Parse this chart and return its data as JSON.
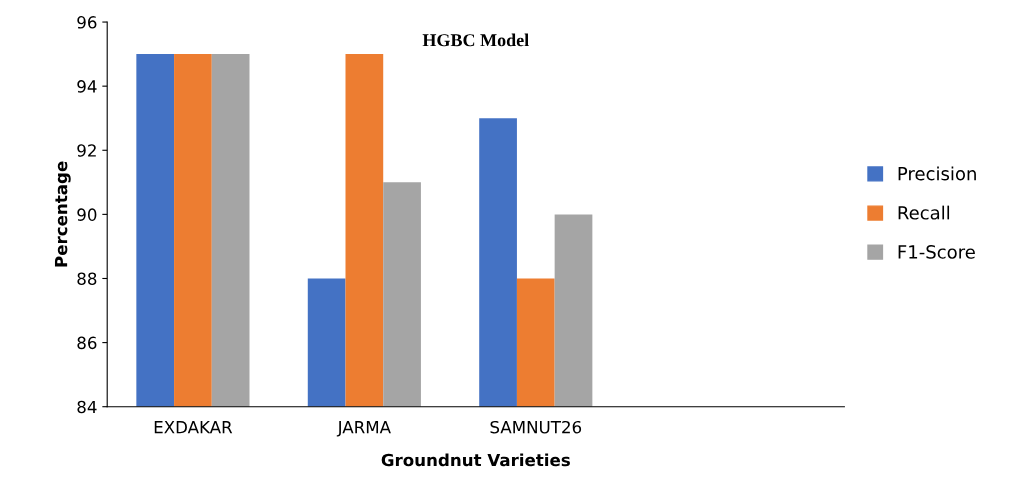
{
  "chart_data": {
    "type": "bar",
    "title": "HGBC Model",
    "xlabel": "Groundnut Varieties",
    "ylabel": "Percentage",
    "categories": [
      "EXDAKAR",
      "JARMA",
      "SAMNUT26",
      null
    ],
    "series": [
      {
        "name": "Precision",
        "color": "#4472c4",
        "values": [
          95,
          88,
          93,
          null
        ]
      },
      {
        "name": "Recall",
        "color": "#ed7d31",
        "values": [
          95,
          95,
          88,
          null
        ]
      },
      {
        "name": "F1-Score",
        "color": "#a5a5a5",
        "values": [
          95,
          91,
          90,
          null
        ]
      }
    ],
    "ylim": [
      84,
      96
    ],
    "yticks": [
      84,
      86,
      88,
      90,
      92,
      94,
      96
    ],
    "grid": false,
    "legend": "right"
  }
}
